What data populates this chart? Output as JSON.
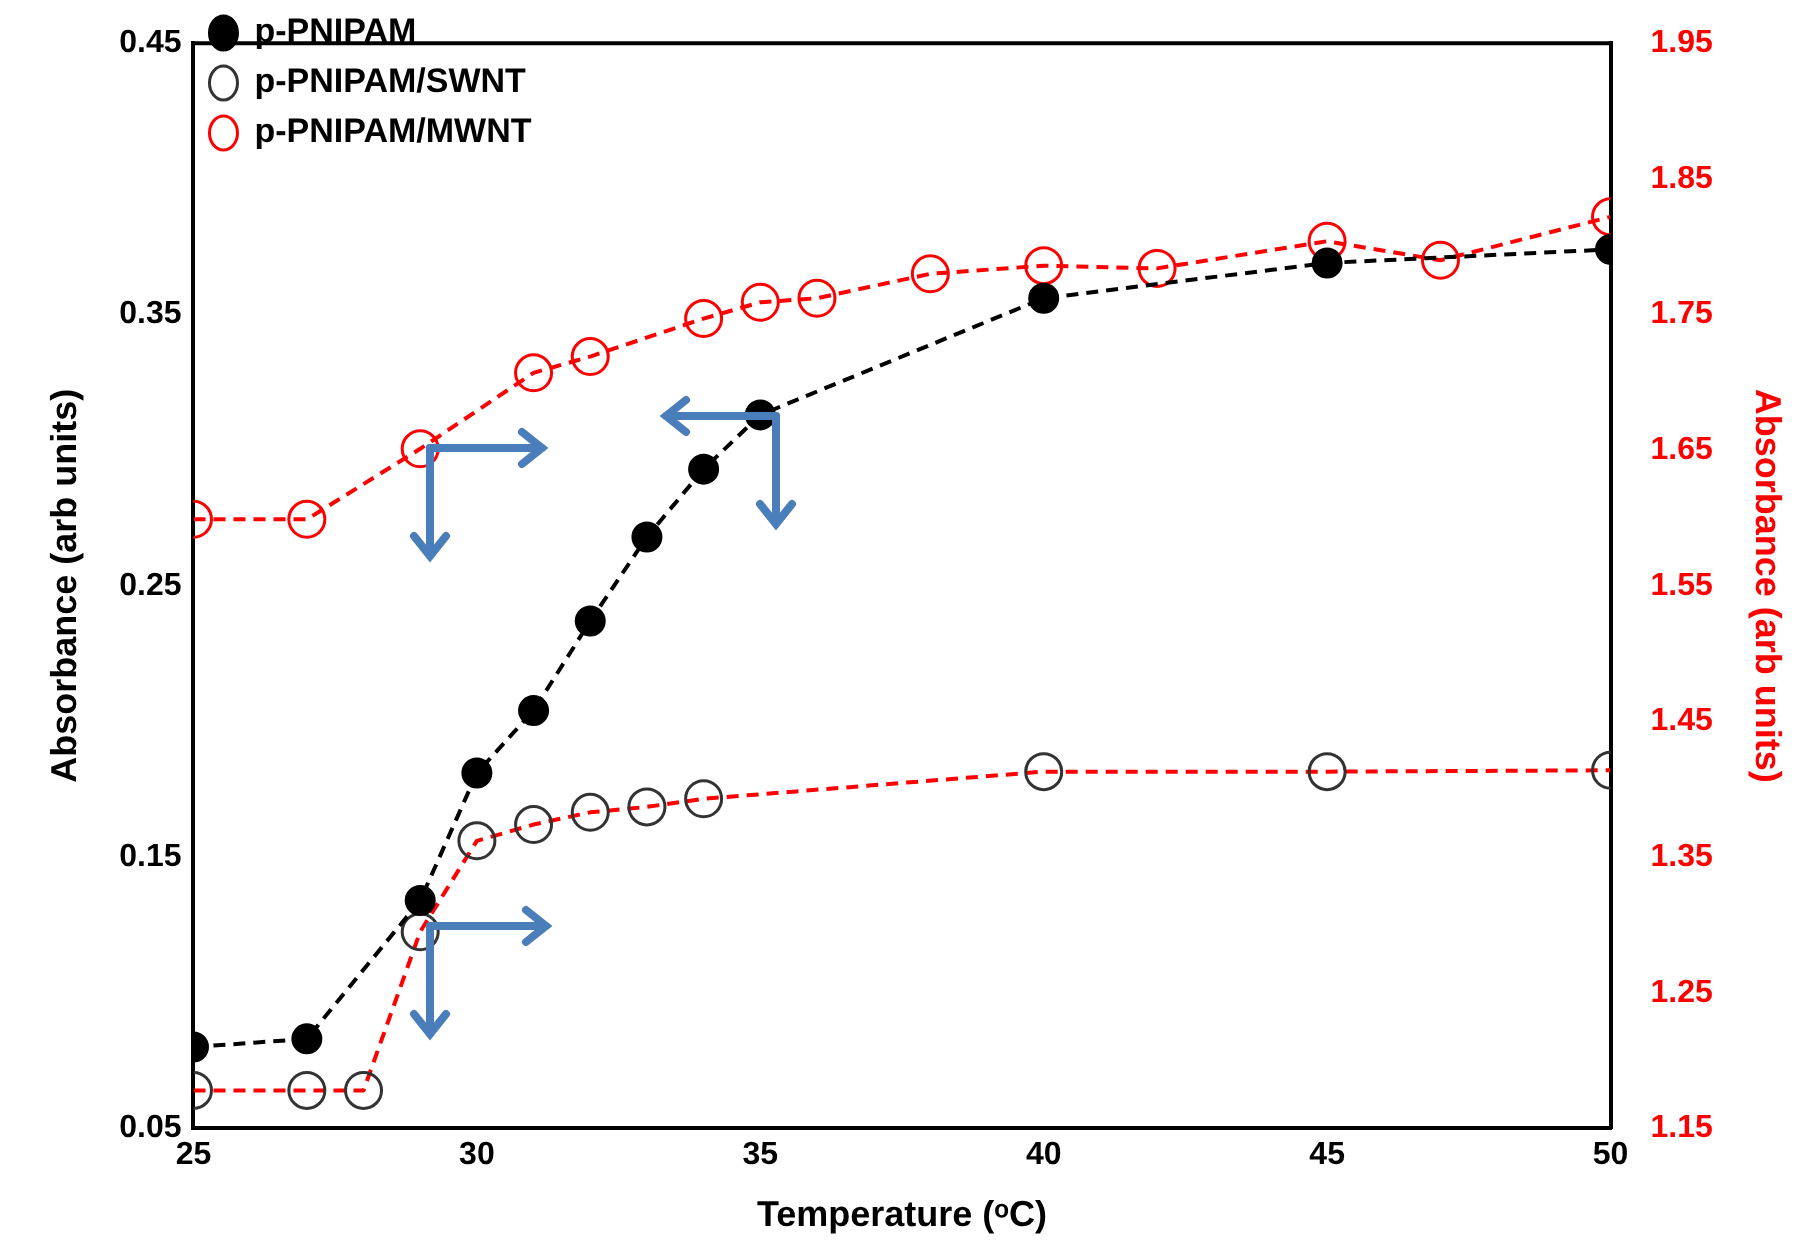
{
  "chart_data": {
    "type": "line",
    "xlabel": "Temperature (ᵒC)",
    "ylabel": "Absorbance (arb units)",
    "y2label": "Absorbance (arb units)",
    "xlim": [
      25,
      50
    ],
    "xticks": [
      25,
      30,
      35,
      40,
      45,
      50
    ],
    "ylim": [
      0.05,
      0.45
    ],
    "yticks": [
      0.05,
      0.15,
      0.25,
      0.35,
      0.45
    ],
    "y2lim": [
      1.15,
      1.95
    ],
    "y2ticks": [
      1.15,
      1.25,
      1.35,
      1.45,
      1.55,
      1.65,
      1.75,
      1.85,
      1.95
    ],
    "grid": false,
    "legend": "top left",
    "marker": "circle",
    "line_style": "dashed",
    "series": [
      {
        "name": "p-PNIPAM",
        "color": "#000000",
        "x": [
          25,
          27,
          29,
          30,
          31,
          32,
          33,
          34,
          35,
          40,
          45,
          50
        ],
        "values": [
          0.08,
          0.083,
          0.134,
          0.181,
          0.204,
          0.237,
          0.268,
          0.293,
          0.313,
          0.356,
          0.369,
          0.374
        ]
      },
      {
        "name": "p-PNIPAM/SWNT",
        "color": "#ff0000",
        "axis": "y2",
        "x": [
          25,
          27,
          28,
          29,
          30,
          31,
          32,
          33,
          34,
          40,
          45,
          50
        ],
        "values": [
          1.178,
          1.178,
          1.178,
          1.295,
          1.362,
          1.374,
          1.383,
          1.387,
          1.393,
          1.413,
          1.413,
          1.414
        ]
      },
      {
        "name": "p-PNIPAM/MWNT",
        "color": "#ff0000",
        "axis": "y2",
        "x": [
          25,
          27,
          29,
          31,
          32,
          34,
          35,
          36,
          38,
          40,
          42,
          45,
          47,
          50
        ],
        "values": [
          1.599,
          1.599,
          1.651,
          1.707,
          1.719,
          1.747,
          1.759,
          1.762,
          1.78,
          1.786,
          1.784,
          1.804,
          1.79,
          1.822
        ]
      }
    ]
  }
}
